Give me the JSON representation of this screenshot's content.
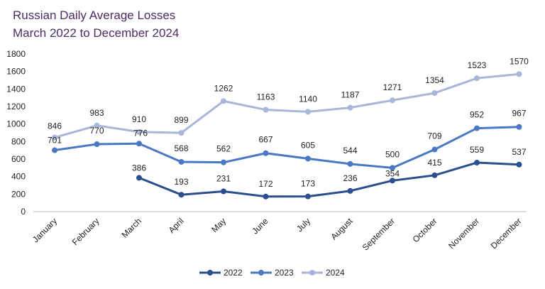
{
  "chart_data": {
    "type": "line",
    "title": "Russian Daily Average Losses",
    "subtitle": "March 2022 to December 2024",
    "categories": [
      "January",
      "February",
      "March",
      "April",
      "May",
      "June",
      "July",
      "August",
      "September",
      "October",
      "November",
      "December"
    ],
    "ylim": [
      0,
      1800
    ],
    "yticks": [
      0,
      200,
      400,
      600,
      800,
      1000,
      1200,
      1400,
      1600,
      1800
    ],
    "grid": false,
    "legend_position": "bottom",
    "series": [
      {
        "name": "2022",
        "color": "#2b4f8e",
        "values": [
          null,
          null,
          386,
          193,
          231,
          172,
          173,
          236,
          354,
          415,
          559,
          537
        ]
      },
      {
        "name": "2023",
        "color": "#4a78c2",
        "values": [
          701,
          770,
          776,
          568,
          562,
          667,
          605,
          544,
          500,
          709,
          952,
          967
        ]
      },
      {
        "name": "2024",
        "color": "#a9b6d9",
        "values": [
          846,
          983,
          910,
          899,
          1262,
          1163,
          1140,
          1187,
          1271,
          1354,
          1523,
          1570
        ]
      }
    ]
  }
}
